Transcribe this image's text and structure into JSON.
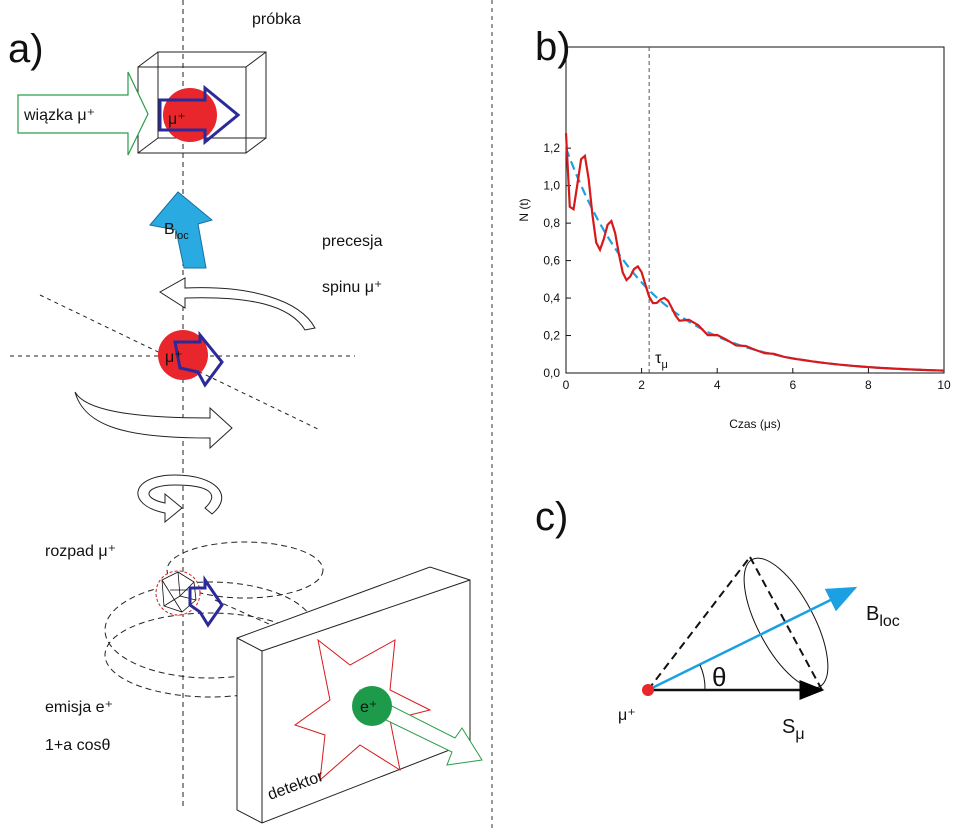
{
  "panels": {
    "a": "a)",
    "b": "b)",
    "c": "c)"
  },
  "diagram_a": {
    "sample": "próbka",
    "beam": "wiązka μ⁺",
    "muon_1": "μ⁺",
    "field_symbol": "B",
    "field_sub": "loc",
    "precession_1": "precesja",
    "precession_2": "spinu μ⁺",
    "muon_2": "μ⁺",
    "decay": "rozpad μ⁺",
    "emission_1": "emisja e⁺",
    "emission_2": "1+a cosθ",
    "positron": "e⁺",
    "detector": "detektor"
  },
  "chart_data": {
    "type": "line",
    "x_label": "Czas (μs)",
    "y_label": "N (t)",
    "x": [
      0,
      0.1,
      0.2,
      0.3,
      0.4,
      0.5,
      0.6,
      0.7,
      0.8,
      0.9,
      1.0,
      1.1,
      1.2,
      1.3,
      1.4,
      1.5,
      1.6,
      1.7,
      1.8,
      1.9,
      2.0,
      2.1,
      2.2,
      2.3,
      2.4,
      2.5,
      2.6,
      2.7,
      2.8,
      2.9,
      3.0,
      3.25,
      3.5,
      3.75,
      4.0,
      4.25,
      4.5,
      4.75,
      5.0,
      5.25,
      5.5,
      5.75,
      6.0,
      6.25,
      6.5,
      6.75,
      7.0,
      7.25,
      7.5,
      7.75,
      8.0,
      8.25,
      8.5,
      8.75,
      9.0,
      9.25,
      9.5,
      9.75,
      10
    ],
    "series": [
      {
        "color": "#1ba1e2",
        "style": "dashed",
        "values": [
          1.2,
          1.147,
          1.096,
          1.047,
          1.001,
          0.956,
          0.914,
          0.873,
          0.834,
          0.797,
          0.762,
          0.728,
          0.696,
          0.665,
          0.635,
          0.607,
          0.58,
          0.554,
          0.53,
          0.506,
          0.484,
          0.462,
          0.441,
          0.422,
          0.403,
          0.385,
          0.368,
          0.352,
          0.336,
          0.321,
          0.307,
          0.274,
          0.245,
          0.218,
          0.195,
          0.174,
          0.155,
          0.138,
          0.124,
          0.11,
          0.0985,
          0.088,
          0.0785,
          0.07,
          0.0625,
          0.0558,
          0.0498,
          0.0445,
          0.0397,
          0.0354,
          0.0316,
          0.0282,
          0.0252,
          0.0225,
          0.0201,
          0.0179,
          0.016,
          0.0143,
          0.0127
        ]
      },
      {
        "color": "#d7191c",
        "style": "solid",
        "values": [
          1.28,
          0.887,
          0.874,
          1.006,
          1.141,
          1.159,
          1.035,
          0.843,
          0.696,
          0.658,
          0.715,
          0.791,
          0.811,
          0.747,
          0.635,
          0.537,
          0.496,
          0.515,
          0.555,
          0.569,
          0.538,
          0.472,
          0.407,
          0.373,
          0.374,
          0.392,
          0.401,
          0.386,
          0.347,
          0.306,
          0.279,
          0.284,
          0.255,
          0.202,
          0.203,
          0.177,
          0.147,
          0.144,
          0.124,
          0.106,
          0.102,
          0.087,
          0.077,
          0.07,
          0.0625,
          0.0558,
          0.0498,
          0.0445,
          0.0397,
          0.0354,
          0.0316,
          0.0282,
          0.0252,
          0.0225,
          0.0201,
          0.0179,
          0.016,
          0.0143,
          0.0127
        ]
      }
    ],
    "xlim": [
      0,
      10
    ],
    "xticks": [
      0,
      2,
      4,
      6,
      8,
      10
    ],
    "ylim": [
      0,
      1.74
    ],
    "yticks": [
      {
        "value": 0,
        "label": "0,0"
      },
      {
        "value": 0.2,
        "label": "0,2"
      },
      {
        "value": 0.4,
        "label": "0,4"
      },
      {
        "value": 0.6,
        "label": "0,6"
      },
      {
        "value": 0.8,
        "label": "0,8"
      },
      {
        "value": 1.0,
        "label": "1,0"
      },
      {
        "value": 1.2,
        "label": "1,2"
      }
    ],
    "annotations": [
      {
        "text": "τ",
        "sub": "μ",
        "x": 2.2
      }
    ]
  },
  "diagram_c": {
    "muon": "μ⁺",
    "angle": "θ",
    "field_symbol": "B",
    "field_sub": "loc",
    "spin_symbol": "S",
    "spin_sub": "μ"
  }
}
